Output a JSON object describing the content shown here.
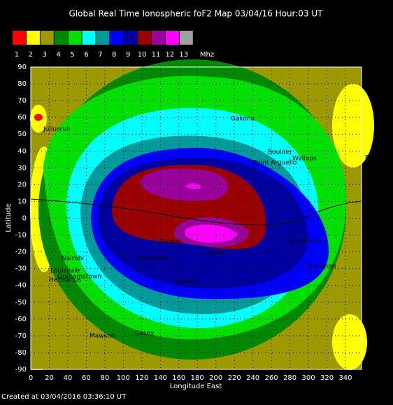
{
  "header": {
    "title": "Global Real Time Ionospheric foF2 Map  03/04/16 Hour:03 UT"
  },
  "legend": {
    "items": [
      {
        "label": "1",
        "color": "#ff0000"
      },
      {
        "label": "2",
        "color": "#ffff00"
      },
      {
        "label": "3",
        "color": "#9c9a00"
      },
      {
        "label": "4",
        "color": "#008800"
      },
      {
        "label": "5",
        "color": "#00e000"
      },
      {
        "label": "6",
        "color": "#00ffff"
      },
      {
        "label": "7",
        "color": "#009a9a"
      },
      {
        "label": "8",
        "color": "#0000ff"
      },
      {
        "label": "9",
        "color": "#0000a0"
      },
      {
        "label": "10",
        "color": "#9a0000"
      },
      {
        "label": "11",
        "color": "#9a009a"
      },
      {
        "label": "12",
        "color": "#ff00ff"
      },
      {
        "label": "13",
        "color": "#a0a0a0"
      }
    ],
    "unit": "Mhz"
  },
  "map": {
    "xticks": [
      0,
      20,
      40,
      60,
      80,
      100,
      120,
      140,
      160,
      180,
      200,
      220,
      240,
      260,
      280,
      300,
      320,
      340
    ],
    "yticks": [
      90,
      80,
      70,
      60,
      50,
      40,
      30,
      20,
      10,
      0,
      -10,
      -20,
      -30,
      -40,
      -50,
      -60,
      -70,
      -80,
      -90
    ],
    "xlabel": "Longitude East",
    "ylabel": "Latitude",
    "stations": [
      "Juliusruh",
      "Gakona",
      "Boulder",
      "Point Arguello",
      "Wallops",
      "El_Arenos",
      "Jicamarca",
      "Tucuman",
      "Darwin",
      "Niue",
      "Nairobi",
      "Louisvale",
      "Grahamstown",
      "Hermanus",
      "Casey",
      "Mawson",
      "Learmonth",
      "Hobart"
    ]
  },
  "footer": "Created at 03/04/2016 03:36:10 UT"
}
